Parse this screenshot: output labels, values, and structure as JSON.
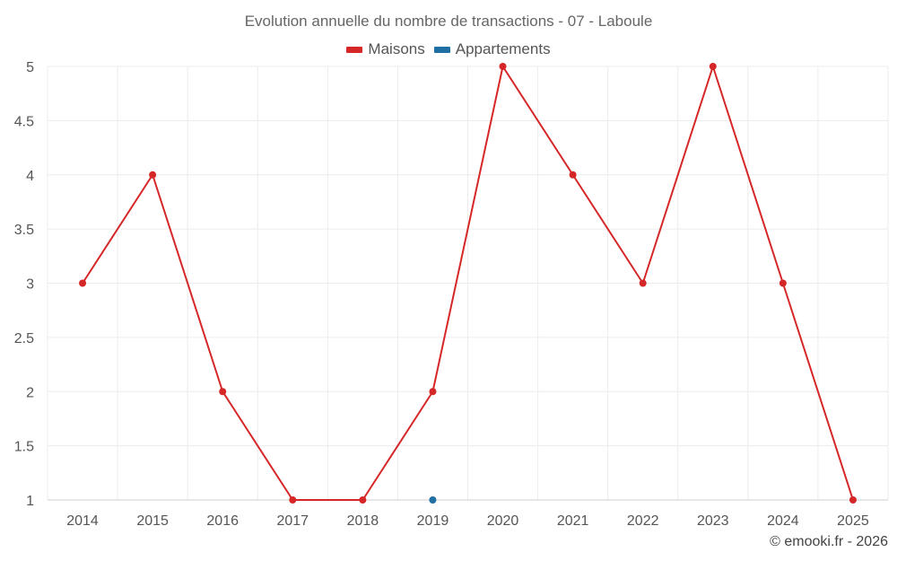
{
  "chart_data": {
    "type": "line",
    "title": "Evolution annuelle du nombre de transactions - 07 - Laboule",
    "categories": [
      "2014",
      "2015",
      "2016",
      "2017",
      "2018",
      "2019",
      "2020",
      "2021",
      "2022",
      "2023",
      "2024",
      "2025"
    ],
    "series": [
      {
        "name": "Maisons",
        "color": "#d62728",
        "values": [
          3,
          4,
          2,
          1,
          1,
          2,
          5,
          4,
          3,
          5,
          3,
          1
        ]
      },
      {
        "name": "Appartements",
        "color": "#1f6fa5",
        "values": [
          null,
          null,
          null,
          null,
          null,
          1,
          null,
          null,
          null,
          null,
          null,
          null
        ]
      }
    ],
    "ylim": [
      1,
      5
    ],
    "yticks": [
      1,
      1.5,
      2,
      2.5,
      3,
      3.5,
      4,
      4.5,
      5
    ],
    "ytick_labels": [
      "1",
      "1.5",
      "2",
      "2.5",
      "3",
      "3.5",
      "4",
      "4.5",
      "5"
    ],
    "xlabel": "",
    "ylabel": "",
    "grid": true,
    "legend": "top-center"
  },
  "credit": "© emooki.fr - 2026"
}
